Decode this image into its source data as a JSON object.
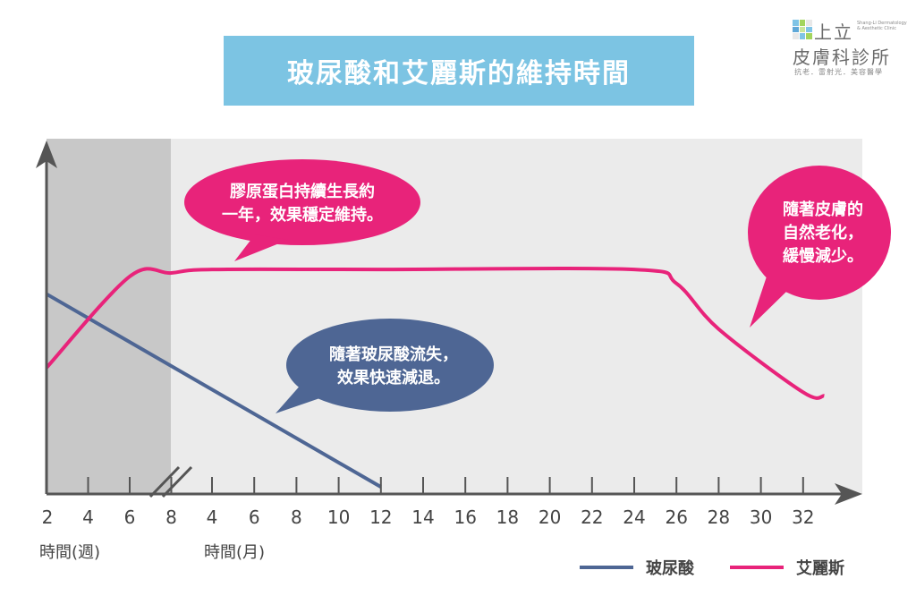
{
  "title": "玻尿酸和艾麗斯的維持時間",
  "logo": {
    "line1": "上立",
    "line1_small": "Shang-Li Dermatology & Aesthetic Clinic",
    "line2": "皮膚科診所",
    "line3": "抗老．雷射光．美容醫學",
    "colors": [
      "#7fc4e6",
      "#a3d55d",
      "#e8e8e8",
      "#5fa8d8",
      "#c9e69c",
      "#7fc4e6",
      "#e8e8e8",
      "#7fc4e6",
      "#a3d55d"
    ]
  },
  "bubbles": {
    "collagen": [
      "膠原蛋白持續生長約",
      "一年，效果穩定維持。"
    ],
    "aging": [
      "隨著皮膚的",
      "自然老化，",
      "緩慢減少。"
    ],
    "ha_loss": [
      "隨著玻尿酸流失，",
      "效果快速減退。"
    ]
  },
  "colors": {
    "ellanse": "#e8237a",
    "hyaluronic": "#4e6694",
    "plot_bg": "#ebebeb",
    "weeks_band": "#c8c8c8",
    "axis": "#555555"
  },
  "chart_data": {
    "type": "line",
    "x_ticks_weeks": [
      "2",
      "4",
      "6",
      "8"
    ],
    "x_ticks_months": [
      "4",
      "6",
      "8",
      "10",
      "12",
      "14",
      "16",
      "18",
      "20",
      "22",
      "24",
      "26",
      "28",
      "30",
      "32"
    ],
    "xlabel_weeks": "時間(週)",
    "xlabel_months": "時間(月)",
    "ylim": [
      0,
      100
    ],
    "series": [
      {
        "name": "玻尿酸",
        "color": "#4e6694",
        "points": [
          [
            "2w",
            57
          ],
          [
            "12m",
            2
          ]
        ]
      },
      {
        "name": "艾麗斯",
        "color": "#e8237a",
        "points": [
          [
            "2w",
            36
          ],
          [
            "6w",
            62
          ],
          [
            "8w",
            63
          ],
          [
            "4m",
            64
          ],
          [
            "12m",
            64
          ],
          [
            "24m",
            64
          ],
          [
            "26m",
            60
          ],
          [
            "28m",
            47
          ],
          [
            "32m",
            29
          ],
          [
            "33m",
            28
          ]
        ]
      }
    ]
  }
}
